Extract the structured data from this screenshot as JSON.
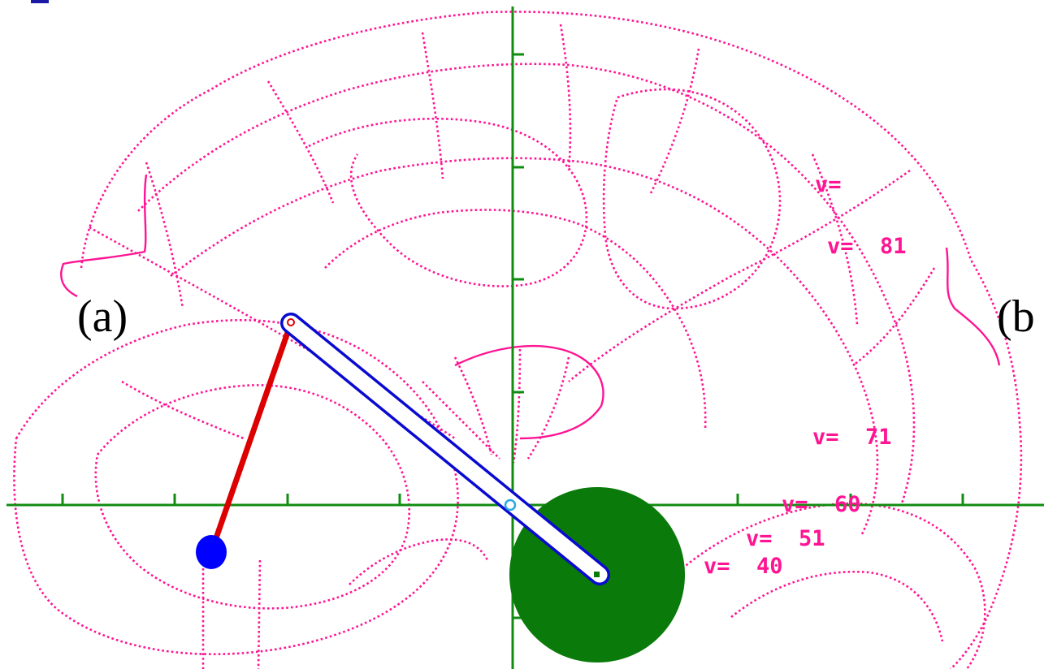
{
  "panel_labels": {
    "a": "(a)",
    "b": "(b"
  },
  "contour_labels": [
    "v=",
    "v=  81",
    "v=  71",
    "v=  60",
    "v=  51",
    "v=  40"
  ],
  "colors": {
    "contours": "#ff1493",
    "axes": "#118c11",
    "lower_arm": "#dd0000",
    "upper_arm_outline": "#0a0ad0",
    "upper_arm_fill": "#ffffff",
    "end_ball": "#0000ff",
    "counterweight": "#0a7a0a",
    "background": "#ffffff"
  }
}
